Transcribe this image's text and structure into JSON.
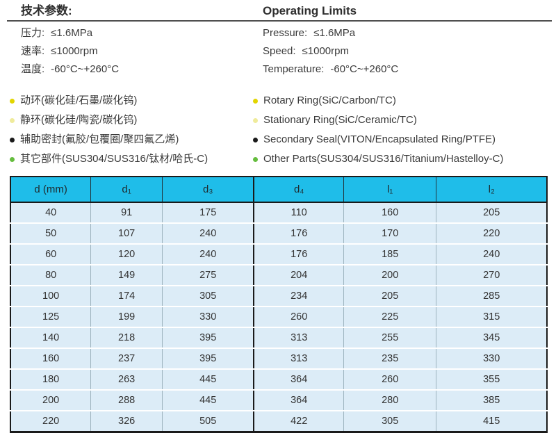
{
  "header": {
    "title_zh": "技术参数:",
    "title_en": "Operating Limits",
    "specs_zh": [
      {
        "label": "压力:",
        "value": "≤1.6MPa"
      },
      {
        "label": "速率:",
        "value": "≤1000rpm"
      },
      {
        "label": "温度:",
        "value": "-60°C~+260°C"
      }
    ],
    "specs_en": [
      {
        "label": "Pressure:",
        "value": "≤1.6MPa"
      },
      {
        "label": "Speed:",
        "value": "≤1000rpm"
      },
      {
        "label": "Temperature:",
        "value": "-60°C~+260°C"
      }
    ]
  },
  "materials": {
    "zh": [
      {
        "text": "动环(碳化硅/石墨/碳化钨)",
        "bullet_color": "#e2d500"
      },
      {
        "text": "静环(碳化硅/陶瓷/碳化钨)",
        "bullet_color": "#efeb9c"
      },
      {
        "text": "辅助密封(氟胶/包覆圈/聚四氟乙烯)",
        "bullet_color": "#1a1a1a"
      },
      {
        "text": "其它部件(SUS304/SUS316/钛材/哈氏-C)",
        "bullet_color": "#65bd3e"
      }
    ],
    "en": [
      {
        "text": "Rotary Ring(SiC/Carbon/TC)",
        "bullet_color": "#e2d500"
      },
      {
        "text": "Stationary Ring(SiC/Ceramic/TC)",
        "bullet_color": "#efeb9c"
      },
      {
        "text": "Secondary Seal(VITON/Encapsulated Ring/PTFE)",
        "bullet_color": "#1a1a1a"
      },
      {
        "text": "Other Parts(SUS304/SUS316/Titanium/Hastelloy-C)",
        "bullet_color": "#65bd3e"
      }
    ]
  },
  "table": {
    "header_bg": "#1fbde9",
    "row_bg": "#dcecf7",
    "border_color": "#1a1a1a",
    "headers": [
      "d (mm)",
      "d₁",
      "d₃",
      "d₄",
      "l₁",
      "l₂"
    ],
    "rows": [
      [
        "40",
        "91",
        "175",
        "110",
        "160",
        "205"
      ],
      [
        "50",
        "107",
        "240",
        "176",
        "170",
        "220"
      ],
      [
        "60",
        "120",
        "240",
        "176",
        "185",
        "240"
      ],
      [
        "80",
        "149",
        "275",
        "204",
        "200",
        "270"
      ],
      [
        "100",
        "174",
        "305",
        "234",
        "205",
        "285"
      ],
      [
        "125",
        "199",
        "330",
        "260",
        "225",
        "315"
      ],
      [
        "140",
        "218",
        "395",
        "313",
        "255",
        "345"
      ],
      [
        "160",
        "237",
        "395",
        "313",
        "235",
        "330"
      ],
      [
        "180",
        "263",
        "445",
        "364",
        "260",
        "355"
      ],
      [
        "200",
        "288",
        "445",
        "364",
        "280",
        "385"
      ],
      [
        "220",
        "326",
        "505",
        "422",
        "305",
        "415"
      ]
    ]
  }
}
